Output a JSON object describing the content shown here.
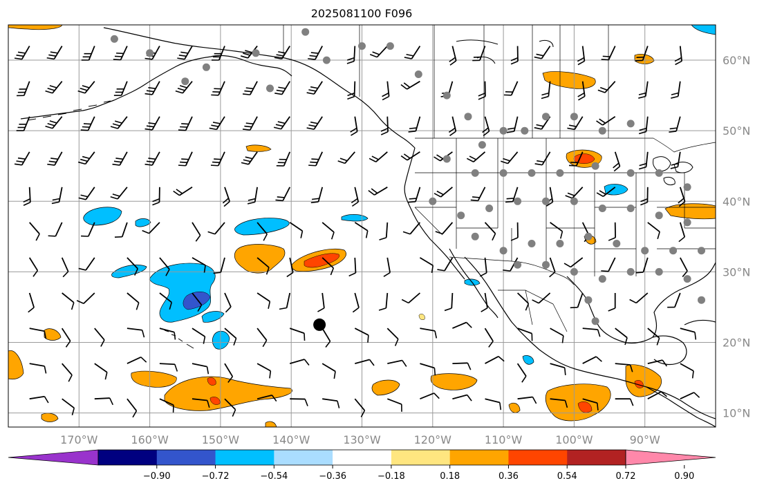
{
  "title": "2025081100 F096",
  "map": {
    "projection": "plate carree",
    "lon_range": [
      -180,
      -80
    ],
    "lat_range": [
      8,
      65
    ],
    "gridlines": true,
    "lon_ticks": [
      {
        "value": -170,
        "label": "170°W"
      },
      {
        "value": -160,
        "label": "160°W"
      },
      {
        "value": -150,
        "label": "150°W"
      },
      {
        "value": -140,
        "label": "140°W"
      },
      {
        "value": -130,
        "label": "130°W"
      },
      {
        "value": -120,
        "label": "120°W"
      },
      {
        "value": -110,
        "label": "110°W"
      },
      {
        "value": -100,
        "label": "100°W"
      },
      {
        "value": -90,
        "label": "90°W"
      }
    ],
    "lat_ticks": [
      {
        "value": 60,
        "label": "60°N"
      },
      {
        "value": 50,
        "label": "50°N"
      },
      {
        "value": 40,
        "label": "40°N"
      },
      {
        "value": 30,
        "label": "30°N"
      },
      {
        "value": 20,
        "label": "20°N"
      },
      {
        "value": 10,
        "label": "10°N"
      }
    ],
    "features": [
      "coastlines",
      "country borders",
      "US state / Canadian province borders",
      "wind barbs",
      "filled anomaly contours",
      "station dots"
    ],
    "cyclone_marker": {
      "lon": -136,
      "lat": 22.5,
      "color": "#000000"
    },
    "station_color": "#808080"
  },
  "colorbar": {
    "extend": "both",
    "colors": [
      "#9933cc",
      "#000080",
      "#3355cc",
      "#00bfff",
      "#aaddff",
      "#ffffff",
      "#ffe680",
      "#ffa500",
      "#ff4500",
      "#b22222",
      "#ff88aa"
    ],
    "bounds": [
      -1.08,
      -0.9,
      -0.72,
      -0.54,
      -0.36,
      -0.18,
      0.18,
      0.36,
      0.54,
      0.72,
      0.9,
      1.08
    ],
    "tick_labels": [
      "−0.90",
      "−0.72",
      "−0.54",
      "−0.36",
      "−0.18",
      "0.18",
      "0.36",
      "0.54",
      "0.72",
      "0.90"
    ]
  }
}
